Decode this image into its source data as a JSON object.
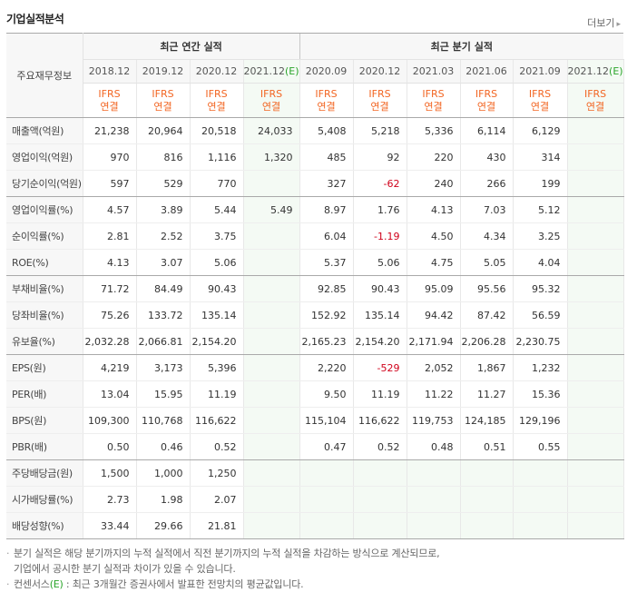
{
  "title": "기업실적분석",
  "more_label": "더보기",
  "headers": {
    "row_label": "주요재무정보",
    "annual_group": "최근 연간 실적",
    "quarter_group": "최근 분기 실적",
    "ifrs": "IFRS",
    "consolidated": "연결",
    "est_marker": "(E)",
    "annual_periods": [
      "2018.12",
      "2019.12",
      "2020.12",
      "2021.12"
    ],
    "quarter_periods": [
      "2020.09",
      "2020.12",
      "2021.03",
      "2021.06",
      "2021.09",
      "2021.12"
    ]
  },
  "rows": [
    {
      "label": "매출액(억원)",
      "values": [
        "21,238",
        "20,964",
        "20,518",
        "24,033",
        "5,408",
        "5,218",
        "5,336",
        "6,114",
        "6,129",
        ""
      ]
    },
    {
      "label": "영업이익(억원)",
      "values": [
        "970",
        "816",
        "1,116",
        "1,320",
        "485",
        "92",
        "220",
        "430",
        "314",
        ""
      ]
    },
    {
      "label": "당기순이익(억원)",
      "values": [
        "597",
        "529",
        "770",
        "",
        "327",
        "-62",
        "240",
        "266",
        "199",
        ""
      ]
    },
    {
      "label": "영업이익률(%)",
      "values": [
        "4.57",
        "3.89",
        "5.44",
        "5.49",
        "8.97",
        "1.76",
        "4.13",
        "7.03",
        "5.12",
        ""
      ]
    },
    {
      "label": "순이익률(%)",
      "values": [
        "2.81",
        "2.52",
        "3.75",
        "",
        "6.04",
        "-1.19",
        "4.50",
        "4.34",
        "3.25",
        ""
      ]
    },
    {
      "label": "ROE(%)",
      "values": [
        "4.13",
        "3.07",
        "5.06",
        "",
        "5.37",
        "5.06",
        "4.75",
        "5.05",
        "4.04",
        ""
      ]
    },
    {
      "label": "부채비율(%)",
      "values": [
        "71.72",
        "84.49",
        "90.43",
        "",
        "92.85",
        "90.43",
        "95.09",
        "95.56",
        "95.32",
        ""
      ]
    },
    {
      "label": "당좌비율(%)",
      "values": [
        "75.26",
        "133.72",
        "135.14",
        "",
        "152.92",
        "135.14",
        "94.42",
        "87.42",
        "56.59",
        ""
      ]
    },
    {
      "label": "유보율(%)",
      "values": [
        "2,032.28",
        "2,066.81",
        "2,154.20",
        "",
        "2,165.23",
        "2,154.20",
        "2,171.94",
        "2,206.28",
        "2,230.75",
        ""
      ]
    },
    {
      "label": "EPS(원)",
      "values": [
        "4,219",
        "3,173",
        "5,396",
        "",
        "2,220",
        "-529",
        "2,052",
        "1,867",
        "1,232",
        ""
      ]
    },
    {
      "label": "PER(배)",
      "values": [
        "13.04",
        "15.95",
        "11.19",
        "",
        "9.50",
        "11.19",
        "11.22",
        "11.27",
        "15.36",
        ""
      ]
    },
    {
      "label": "BPS(원)",
      "values": [
        "109,300",
        "110,768",
        "116,622",
        "",
        "115,104",
        "116,622",
        "119,753",
        "124,185",
        "129,196",
        ""
      ]
    },
    {
      "label": "PBR(배)",
      "values": [
        "0.50",
        "0.46",
        "0.52",
        "",
        "0.47",
        "0.52",
        "0.48",
        "0.51",
        "0.55",
        ""
      ]
    },
    {
      "label": "주당배당금(원)",
      "values": [
        "1,500",
        "1,000",
        "1,250",
        "",
        "",
        "",
        "",
        "",
        "",
        ""
      ]
    },
    {
      "label": "시가배당률(%)",
      "values": [
        "2.73",
        "1.98",
        "2.07",
        "",
        "",
        "",
        "",
        "",
        "",
        ""
      ]
    },
    {
      "label": "배당성향(%)",
      "values": [
        "33.44",
        "29.66",
        "21.81",
        "",
        "",
        "",
        "",
        "",
        "",
        ""
      ]
    }
  ],
  "group_ends": [
    2,
    5,
    8,
    12,
    15
  ],
  "notes": {
    "line1": "분기 실적은 해당 분기까지의 누적 실적에서 직전 분기까지의 누적 실적을 차감하는 방식으로 계산되므로,",
    "line2": "기업에서 공시한 분기 실적과 차이가 있을 수 있습니다.",
    "line3_prefix": "컨센서스",
    "line3_marker": "(E)",
    "line3_rest": " : 최근 3개월간 증권사에서 발표한 전망치의 평균값입니다."
  },
  "colors": {
    "ifrs_orange": "#f26522",
    "estimate_green": "#2aa52a",
    "negative_red": "#d0021b",
    "estimate_bg": "#f4faf4"
  }
}
